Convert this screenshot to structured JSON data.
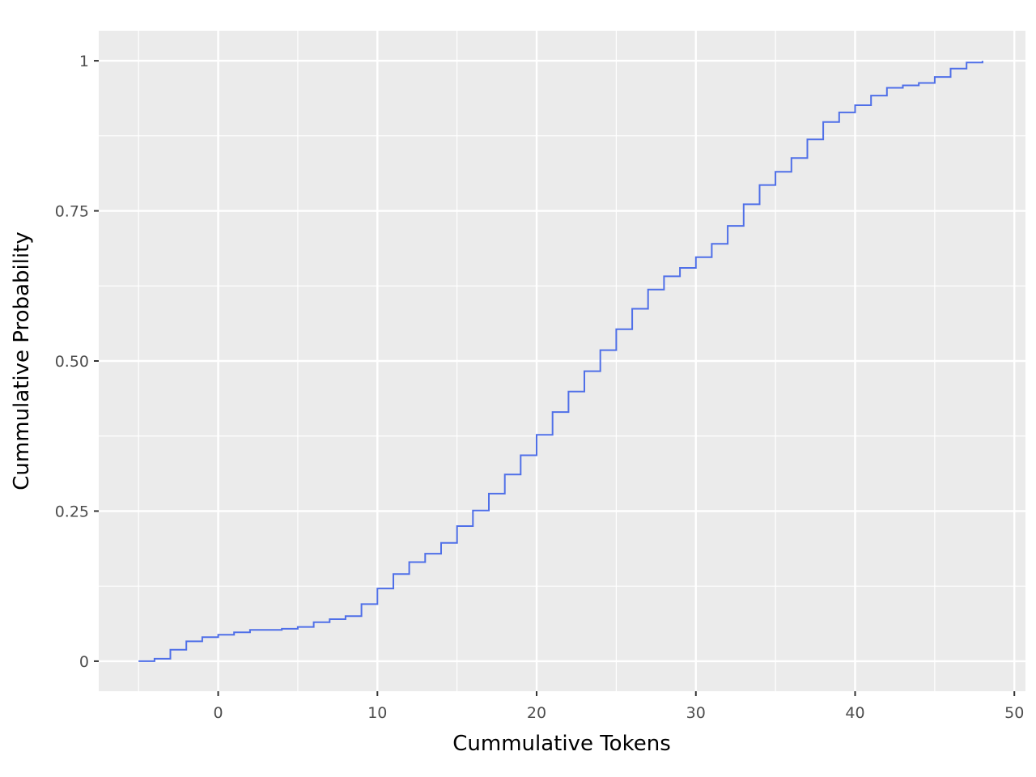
{
  "chart_data": {
    "type": "line",
    "step": true,
    "title": "",
    "xlabel": "Cummulative Tokens",
    "ylabel": "Cummulative Probability",
    "xlim": [
      -7.5,
      50.7
    ],
    "ylim": [
      -0.05,
      1.05
    ],
    "x_ticks": [
      0,
      10,
      20,
      30,
      40,
      50
    ],
    "x_tick_labels": [
      "0",
      "10",
      "20",
      "30",
      "40",
      "50"
    ],
    "y_ticks": [
      0,
      0.25,
      0.5,
      0.75,
      1
    ],
    "y_tick_labels": [
      "0",
      "0.25",
      "0.50",
      "0.75",
      "1"
    ],
    "grid": true,
    "legend": "none",
    "colors": {
      "panel": "#ebebeb",
      "grid": "#ffffff",
      "line": "#4f6fe8",
      "tick": "#333333"
    },
    "series": [
      {
        "x": [
          -5,
          -4,
          -3,
          -2,
          -1,
          0,
          1,
          2,
          3,
          4,
          5,
          6,
          7,
          8,
          9,
          10,
          11,
          12,
          13,
          14,
          15,
          16,
          17,
          18,
          19,
          20,
          21,
          22,
          23,
          24,
          25,
          26,
          27,
          28,
          29,
          30,
          31,
          32,
          33,
          34,
          35,
          36,
          37,
          38,
          39,
          40,
          41,
          42,
          43,
          44,
          45,
          46,
          47,
          48
        ],
        "y": [
          0.0,
          0.004,
          0.019,
          0.033,
          0.04,
          0.044,
          0.048,
          0.052,
          0.052,
          0.054,
          0.057,
          0.065,
          0.07,
          0.075,
          0.095,
          0.121,
          0.145,
          0.165,
          0.179,
          0.197,
          0.225,
          0.251,
          0.279,
          0.311,
          0.343,
          0.377,
          0.415,
          0.449,
          0.483,
          0.518,
          0.553,
          0.587,
          0.619,
          0.641,
          0.655,
          0.673,
          0.695,
          0.725,
          0.761,
          0.793,
          0.815,
          0.838,
          0.869,
          0.898,
          0.914,
          0.926,
          0.942,
          0.955,
          0.959,
          0.963,
          0.973,
          0.987,
          0.997,
          1.0
        ]
      }
    ]
  }
}
